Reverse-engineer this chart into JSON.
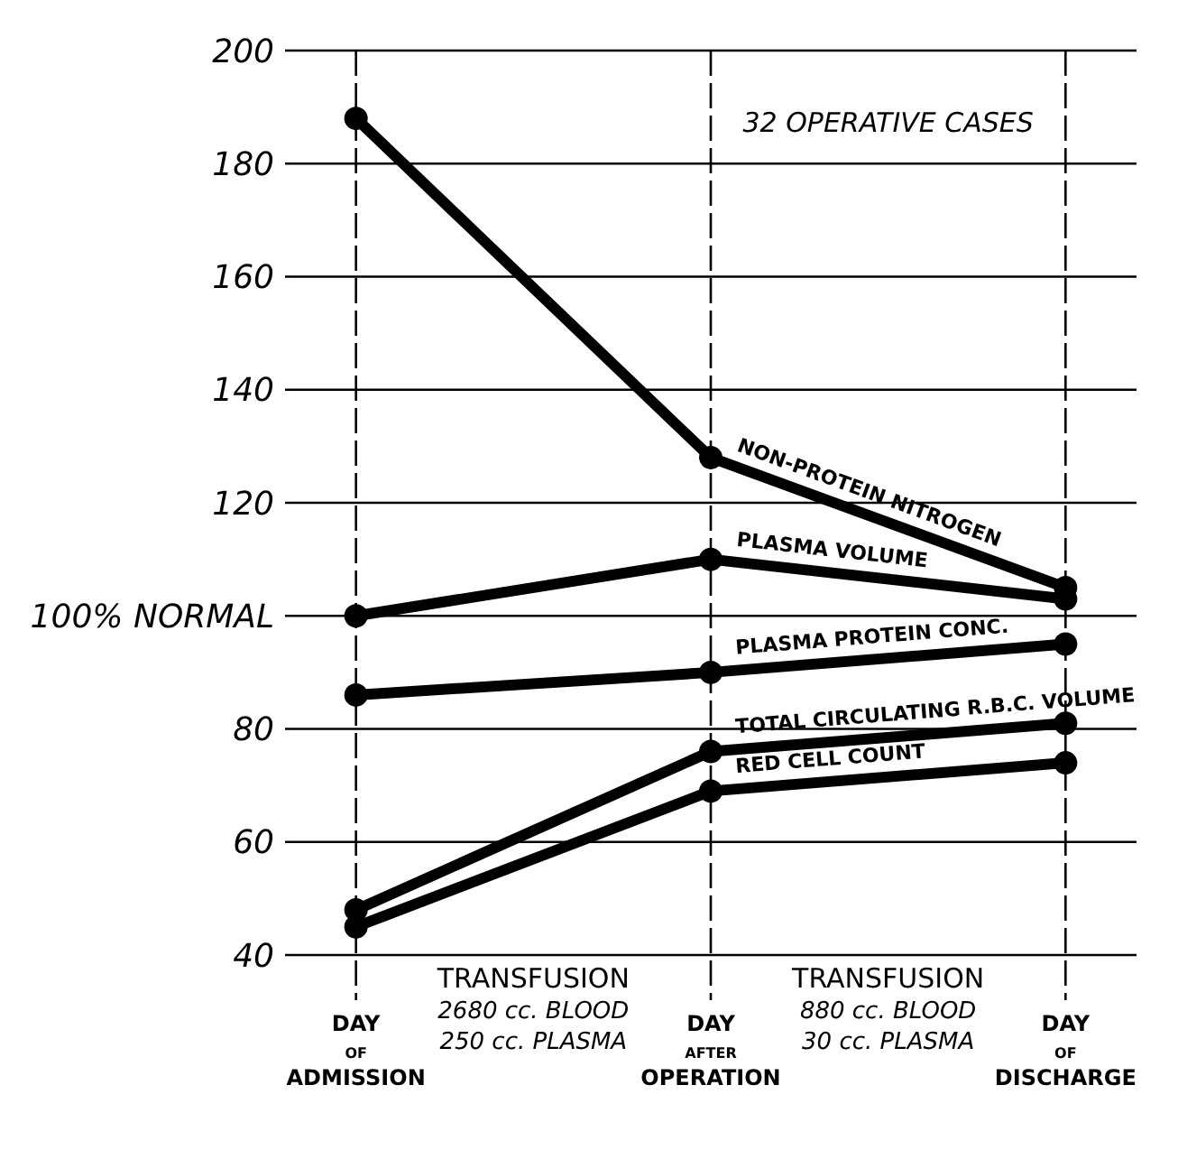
{
  "chart_data": {
    "type": "line",
    "title": "32 OPERATIVE CASES",
    "categories": [
      "DAY\nOF\nADMISSION",
      "DAY\nAFTER\nOPERATION",
      "DAY\nOF\nDISCHARGE"
    ],
    "series": [
      {
        "name": "NON-PROTEIN NITROGEN",
        "color": "#000000",
        "values": [
          188,
          128,
          105
        ]
      },
      {
        "name": "PLASMA VOLUME",
        "color": "#000000",
        "values": [
          100,
          110,
          103
        ]
      },
      {
        "name": "PLASMA PROTEIN CONC.",
        "color": "#000000",
        "values": [
          86,
          90,
          95
        ]
      },
      {
        "name": "TOTAL CIRCULATING R.B.C. VOLUME",
        "color": "#000000",
        "values": [
          48,
          76,
          81
        ]
      },
      {
        "name": "RED CELL COUNT",
        "color": "#000000",
        "values": [
          45,
          69,
          74
        ]
      }
    ],
    "ylim": [
      40,
      200
    ],
    "yticks": [
      40,
      60,
      80,
      {
        "value": 100,
        "label": "100% NORMAL"
      },
      120,
      140,
      160,
      180,
      200
    ],
    "grid": true,
    "marker": "circle",
    "line_style": "solid",
    "annotations": [
      "TRANSFUSION\n2680 cc. BLOOD\n250 cc. PLASMA",
      "TRANSFUSION\n880 cc. BLOOD\n30 cc. PLASMA"
    ]
  }
}
